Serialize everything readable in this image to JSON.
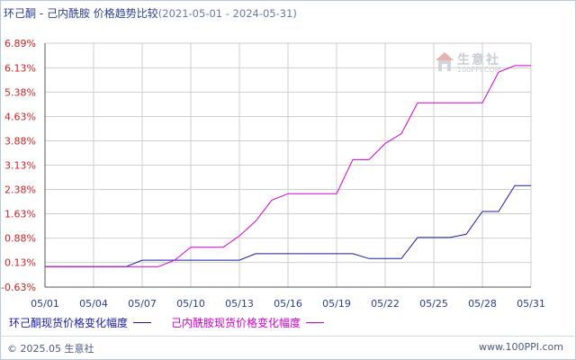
{
  "header": {
    "title": "环己酮 - 己内酰胺 价格趋势比较",
    "period": "(2021-05-01 - 2024-05-31)"
  },
  "watermark": {
    "brand": "生意社",
    "url": "100PPI.COM"
  },
  "footer": {
    "copyright": "© 2025.05 生意社",
    "site": "www.100PPI.com"
  },
  "colors": {
    "ytick": "#cc2222",
    "xtick": "#2a3f8f",
    "grid": "#cfcfcf",
    "axis": "#555555"
  },
  "chart_data": {
    "type": "line",
    "title": "环己酮 - 己内酰胺 价格趋势比较",
    "xlabel": "",
    "ylabel": "",
    "x_ticks": [
      "05/01",
      "05/04",
      "05/07",
      "05/10",
      "05/13",
      "05/16",
      "05/19",
      "05/22",
      "05/25",
      "05/28",
      "05/31"
    ],
    "y_ticks": [
      "-0.63%",
      "0.13%",
      "0.88%",
      "1.63%",
      "2.38%",
      "3.13%",
      "3.88%",
      "4.63%",
      "5.38%",
      "6.13%",
      "6.89%"
    ],
    "ylim": [
      -0.63,
      6.89
    ],
    "xlim": [
      1,
      31
    ],
    "grid": true,
    "legend_position": "bottom",
    "series": [
      {
        "name": "环己酮现货价格变化幅度",
        "color": "#1a1aa6",
        "points": [
          [
            1,
            0
          ],
          [
            6,
            0
          ],
          [
            7,
            0.2
          ],
          [
            8,
            0.2
          ],
          [
            9,
            0.2
          ],
          [
            10,
            0.2
          ],
          [
            11,
            0.2
          ],
          [
            12,
            0.2
          ],
          [
            13,
            0.2
          ],
          [
            14,
            0.4
          ],
          [
            15,
            0.4
          ],
          [
            16,
            0.4
          ],
          [
            17,
            0.4
          ],
          [
            18,
            0.4
          ],
          [
            19,
            0.4
          ],
          [
            20,
            0.4
          ],
          [
            21,
            0.25
          ],
          [
            22,
            0.25
          ],
          [
            23,
            0.25
          ],
          [
            24,
            0.9
          ],
          [
            25,
            0.9
          ],
          [
            26,
            0.9
          ],
          [
            27,
            1.0
          ],
          [
            28,
            1.7
          ],
          [
            29,
            1.7
          ],
          [
            30,
            2.5
          ],
          [
            31,
            2.5
          ]
        ]
      },
      {
        "name": "己内酰胺现货价格变化幅度",
        "color": "#d100d1",
        "points": [
          [
            1,
            0
          ],
          [
            8,
            0
          ],
          [
            9,
            0.2
          ],
          [
            10,
            0.6
          ],
          [
            11,
            0.6
          ],
          [
            12,
            0.6
          ],
          [
            13,
            0.95
          ],
          [
            14,
            1.4
          ],
          [
            15,
            2.05
          ],
          [
            16,
            2.25
          ],
          [
            17,
            2.25
          ],
          [
            18,
            2.25
          ],
          [
            19,
            2.25
          ],
          [
            20,
            3.3
          ],
          [
            21,
            3.3
          ],
          [
            22,
            3.8
          ],
          [
            23,
            4.1
          ],
          [
            24,
            5.05
          ],
          [
            25,
            5.05
          ],
          [
            26,
            5.05
          ],
          [
            27,
            5.05
          ],
          [
            28,
            5.05
          ],
          [
            29,
            6.0
          ],
          [
            30,
            6.2
          ],
          [
            31,
            6.2
          ]
        ]
      }
    ]
  }
}
